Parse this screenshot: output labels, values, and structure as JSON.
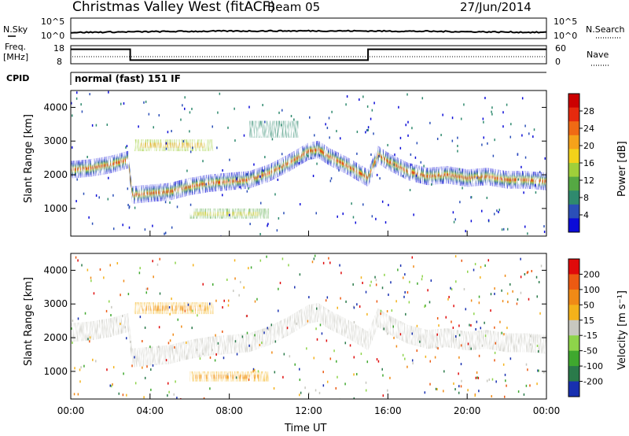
{
  "header": {
    "title": "Christmas Valley West (fitACF)",
    "beam": "Beam 05",
    "date": "27/Jun/2014"
  },
  "labels": {
    "nsky": "N.Sky",
    "nsearch": "N.Search",
    "freq": "Freq.",
    "mhz": "[MHz]",
    "nave": "Nave",
    "cpid": "CPID",
    "cpid_value": "normal (fast) 151 IF",
    "slant_range": "Slant Range [km]",
    "time_ut": "Time UT",
    "power_label": "Power [dB]",
    "velocity_label": "Velocity [m s⁻¹]"
  },
  "axes": {
    "noise_ticks": [
      "10^5",
      "10^0"
    ],
    "freq_ticks": [
      "18",
      "8"
    ],
    "nave_ticks": [
      "60",
      "0"
    ],
    "range_ticks": [
      "4000",
      "3000",
      "2000",
      "1000"
    ],
    "time_ticks": [
      "00:00",
      "04:00",
      "08:00",
      "12:00",
      "16:00",
      "20:00",
      "00:00"
    ],
    "power_ticks": [
      "28",
      "24",
      "20",
      "16",
      "12",
      "8",
      "4"
    ],
    "velocity_ticks": [
      "200",
      "100",
      "50",
      "15",
      "-15",
      "-50",
      "-100",
      "-200"
    ]
  },
  "colors": {
    "power_scale": [
      "#0b0bd8",
      "#2b4fb8",
      "#2f8a6e",
      "#55a843",
      "#9fcf3a",
      "#f2d21a",
      "#f5a21a",
      "#f06a14",
      "#e62a0e",
      "#cc0000"
    ],
    "velocity_scale": [
      "#1830b0",
      "#2a7a4a",
      "#3fa82e",
      "#8ed44a",
      "#c8c8c0",
      "#f4b21a",
      "#f08a16",
      "#ec5a12",
      "#e00a0a"
    ],
    "ground_scatter": "#c8c8c0"
  },
  "chart_data": {
    "type": "heatmap",
    "x_range_hours": [
      0,
      24
    ],
    "y_range_km": [
      180,
      4500
    ],
    "colorbar_power_db": [
      0,
      30
    ],
    "colorbar_velocity_ms": [
      -250,
      250
    ],
    "frequency_mhz_steps": [
      {
        "from_hour": 0,
        "to_hour": 3,
        "value": 16
      },
      {
        "from_hour": 3,
        "to_hour": 15,
        "value": 10
      },
      {
        "from_hour": 15,
        "to_hour": 24,
        "value": 16
      }
    ],
    "dominant_echo_trace_km": {
      "hours": [
        0,
        1,
        2,
        2.9,
        3.1,
        4,
        5,
        6,
        7,
        8,
        9,
        10,
        11,
        12,
        12.5,
        13,
        14,
        15,
        15.5,
        16,
        17,
        18,
        19,
        20,
        21,
        22,
        23,
        24
      ],
      "range": [
        2150,
        2200,
        2300,
        2450,
        1400,
        1450,
        1500,
        1650,
        1750,
        1800,
        1850,
        2050,
        2350,
        2700,
        2750,
        2550,
        2250,
        1900,
        2600,
        2400,
        2100,
        1950,
        2000,
        1900,
        1950,
        1850,
        1850,
        1800
      ]
    }
  }
}
